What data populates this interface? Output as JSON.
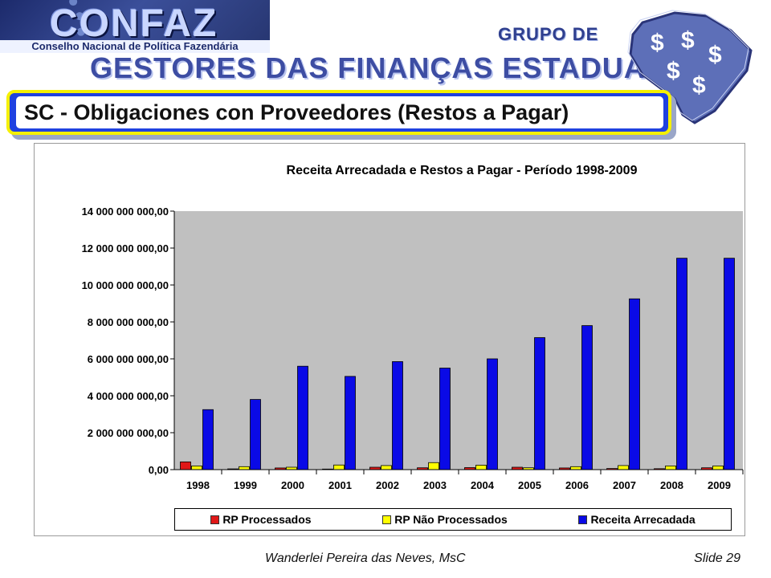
{
  "header": {
    "logo_main": "CONFAZ",
    "logo_subtitle": "Conselho Nacional de Política Fazendária",
    "group_label": "GRUPO DE",
    "group_title": "GESTORES DAS FINANÇAS ESTADUAIS",
    "map_symbol": "$"
  },
  "slide": {
    "title": "SC - Obligaciones con Proveedores (Restos a Pagar)"
  },
  "colors": {
    "rp_processados": "#e01818",
    "rp_nao_processados": "#ffff00",
    "receita_arrecadada": "#0a0ae6",
    "plot_background": "#c0c0c0",
    "banner_blue": "#1f41e0",
    "banner_border": "#f5f000"
  },
  "chart_data": {
    "type": "bar",
    "title": "Receita Arrecadada e Restos a Pagar - Período 1998-2009",
    "xlabel": "",
    "ylabel": "",
    "ylim": [
      0,
      14000000000
    ],
    "y_ticks": [
      0,
      2000000000,
      4000000000,
      6000000000,
      8000000000,
      10000000000,
      12000000000,
      14000000000
    ],
    "y_tick_labels": [
      "0,00",
      "2 000 000 000,00",
      "4 000 000 000,00",
      "6 000 000 000,00",
      "8 000 000 000,00",
      "10 000 000 000,00",
      "12 000 000 000,00",
      "14 000 000 000,00"
    ],
    "categories": [
      "1998",
      "1999",
      "2000",
      "2001",
      "2002",
      "2003",
      "2004",
      "2005",
      "2006",
      "2007",
      "2008",
      "2009"
    ],
    "series": [
      {
        "name": "RP Processados",
        "color": "#e01818",
        "values": [
          420000000,
          40000000,
          90000000,
          30000000,
          130000000,
          100000000,
          110000000,
          130000000,
          90000000,
          60000000,
          50000000,
          100000000
        ]
      },
      {
        "name": "RP Não Processados",
        "color": "#ffff00",
        "values": [
          200000000,
          160000000,
          130000000,
          250000000,
          220000000,
          380000000,
          240000000,
          100000000,
          160000000,
          220000000,
          200000000,
          200000000
        ]
      },
      {
        "name": "Receita Arrecadada",
        "color": "#0a0ae6",
        "values": [
          3250000000,
          3800000000,
          5600000000,
          5050000000,
          5850000000,
          5500000000,
          6000000000,
          7150000000,
          7800000000,
          9250000000,
          11450000000,
          11450000000
        ]
      }
    ],
    "grid": false,
    "legend_position": "bottom"
  },
  "footer": {
    "author": "Wanderlei Pereira das Neves, MsC",
    "slide_number": "Slide 29"
  }
}
